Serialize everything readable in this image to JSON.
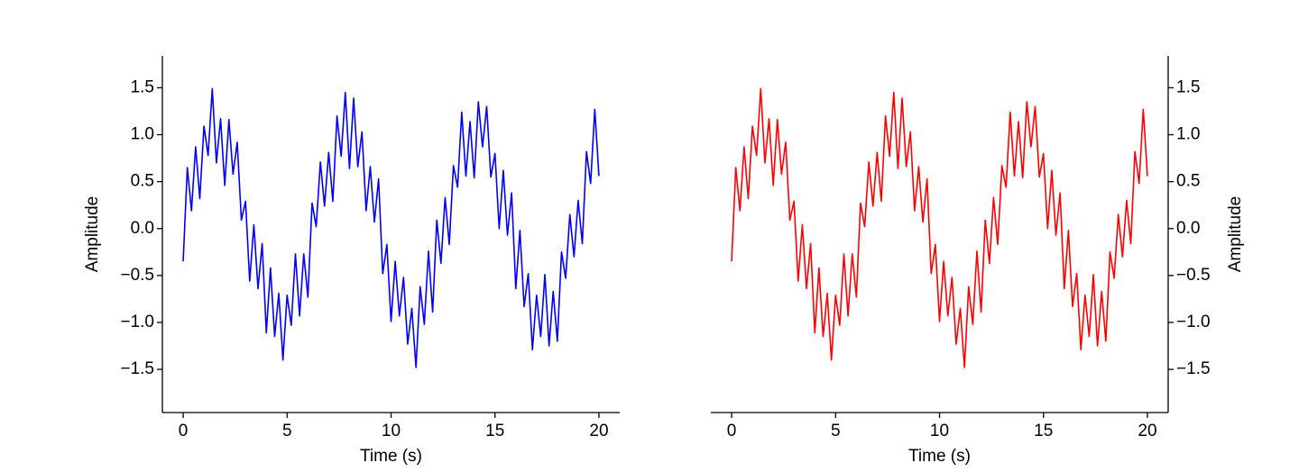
{
  "chart_data": [
    {
      "type": "line",
      "xlabel": "Time (s)",
      "ylabel": "Amplitude",
      "yaxis_side": "left",
      "color": "#0000ff",
      "xlim": [
        -1,
        21
      ],
      "ylim": [
        -1.96,
        1.84
      ],
      "xticks": [
        0,
        5,
        10,
        15,
        20
      ],
      "yticks": [
        {
          "value": -1.5,
          "label": "−1.5"
        },
        {
          "value": -1,
          "label": "−1.0"
        },
        {
          "value": -0.5,
          "label": "−0.5"
        },
        {
          "value": 0,
          "label": "0.0"
        },
        0.5,
        {
          "value": 1,
          "label": "1.0"
        },
        1.5
      ],
      "x": [
        0,
        0.2,
        0.4,
        0.6,
        0.8,
        1,
        1.2,
        1.4,
        1.6,
        1.8,
        2,
        2.2,
        2.4,
        2.6,
        2.8,
        3,
        3.2,
        3.4,
        3.6,
        3.8,
        4,
        4.2,
        4.4,
        4.6,
        4.8,
        5,
        5.2,
        5.4,
        5.6,
        5.8,
        6,
        6.2,
        6.4,
        6.6,
        6.8,
        7,
        7.2,
        7.4,
        7.6,
        7.8,
        8,
        8.2,
        8.4,
        8.6,
        8.8,
        9,
        9.2,
        9.4,
        9.6,
        9.8,
        10,
        10.2,
        10.4,
        10.6,
        10.8,
        11,
        11.2,
        11.4,
        11.6,
        11.8,
        12,
        12.2,
        12.4,
        12.6,
        12.8,
        13,
        13.2,
        13.4,
        13.6,
        13.8,
        14,
        14.2,
        14.4,
        14.6,
        14.8,
        15,
        15.2,
        15.4,
        15.6,
        15.8,
        16,
        16.2,
        16.4,
        16.6,
        16.8,
        17,
        17.2,
        17.4,
        17.6,
        17.8,
        18,
        18.2,
        18.4,
        18.6,
        18.8,
        19,
        19.2,
        19.4,
        19.6,
        19.8,
        20
      ],
      "values": [
        -0.35,
        0.65,
        0.19,
        0.87,
        0.32,
        1.09,
        0.78,
        1.49,
        0.7,
        1.17,
        0.46,
        1.16,
        0.58,
        0.92,
        0.09,
        0.29,
        -0.56,
        0.04,
        -0.64,
        -0.16,
        -1.11,
        -0.42,
        -1.15,
        -0.69,
        -1.4,
        -0.71,
        -1.03,
        -0.27,
        -0.93,
        -0.27,
        -0.73,
        0.27,
        0.02,
        0.71,
        0.24,
        0.81,
        0.29,
        1.2,
        0.77,
        1.45,
        0.64,
        1.39,
        0.66,
        1.03,
        0.19,
        0.66,
        0.07,
        0.53,
        -0.48,
        -0.17,
        -0.99,
        -0.35,
        -0.93,
        -0.52,
        -1.23,
        -0.85,
        -1.48,
        -0.62,
        -1.02,
        -0.24,
        -0.89,
        0.09,
        -0.37,
        0.33,
        -0.17,
        0.67,
        0.44,
        1.24,
        0.56,
        1.14,
        0.54,
        1.35,
        0.87,
        1.3,
        0.55,
        0.8,
        0,
        0.62,
        -0.07,
        0.38,
        -0.64,
        -0.02,
        -0.83,
        -0.48,
        -1.29,
        -0.71,
        -1.15,
        -0.49,
        -1.25,
        -0.67,
        -1.2,
        -0.25,
        -0.53,
        0.15,
        -0.3,
        0.3,
        -0.16,
        0.82,
        0.48,
        1.27,
        0.56
      ]
    },
    {
      "type": "line",
      "xlabel": "Time (s)",
      "ylabel": "Amplitude",
      "yaxis_side": "right",
      "color": "#ff0000",
      "xlim": [
        -1,
        21
      ],
      "ylim": [
        -1.96,
        1.84
      ],
      "xticks": [
        0,
        5,
        10,
        15,
        20
      ],
      "yticks": [
        {
          "value": -1.5,
          "label": "−1.5"
        },
        {
          "value": -1,
          "label": "−1.0"
        },
        {
          "value": -0.5,
          "label": "−0.5"
        },
        {
          "value": 0,
          "label": "0.0"
        },
        0.5,
        {
          "value": 1,
          "label": "1.0"
        },
        1.5
      ],
      "x": [
        0,
        0.2,
        0.4,
        0.6,
        0.8,
        1,
        1.2,
        1.4,
        1.6,
        1.8,
        2,
        2.2,
        2.4,
        2.6,
        2.8,
        3,
        3.2,
        3.4,
        3.6,
        3.8,
        4,
        4.2,
        4.4,
        4.6,
        4.8,
        5,
        5.2,
        5.4,
        5.6,
        5.8,
        6,
        6.2,
        6.4,
        6.6,
        6.8,
        7,
        7.2,
        7.4,
        7.6,
        7.8,
        8,
        8.2,
        8.4,
        8.6,
        8.8,
        9,
        9.2,
        9.4,
        9.6,
        9.8,
        10,
        10.2,
        10.4,
        10.6,
        10.8,
        11,
        11.2,
        11.4,
        11.6,
        11.8,
        12,
        12.2,
        12.4,
        12.6,
        12.8,
        13,
        13.2,
        13.4,
        13.6,
        13.8,
        14,
        14.2,
        14.4,
        14.6,
        14.8,
        15,
        15.2,
        15.4,
        15.6,
        15.8,
        16,
        16.2,
        16.4,
        16.6,
        16.8,
        17,
        17.2,
        17.4,
        17.6,
        17.8,
        18,
        18.2,
        18.4,
        18.6,
        18.8,
        19,
        19.2,
        19.4,
        19.6,
        19.8,
        20
      ],
      "values": [
        -0.35,
        0.65,
        0.19,
        0.87,
        0.32,
        1.09,
        0.78,
        1.49,
        0.7,
        1.17,
        0.46,
        1.16,
        0.58,
        0.92,
        0.09,
        0.29,
        -0.56,
        0.04,
        -0.64,
        -0.16,
        -1.11,
        -0.42,
        -1.15,
        -0.69,
        -1.4,
        -0.71,
        -1.03,
        -0.27,
        -0.93,
        -0.27,
        -0.73,
        0.27,
        0.02,
        0.71,
        0.24,
        0.81,
        0.29,
        1.2,
        0.77,
        1.45,
        0.64,
        1.39,
        0.66,
        1.03,
        0.19,
        0.66,
        0.07,
        0.53,
        -0.48,
        -0.17,
        -0.99,
        -0.35,
        -0.93,
        -0.52,
        -1.23,
        -0.85,
        -1.48,
        -0.62,
        -1.02,
        -0.24,
        -0.89,
        0.09,
        -0.37,
        0.33,
        -0.17,
        0.67,
        0.44,
        1.24,
        0.56,
        1.14,
        0.54,
        1.35,
        0.87,
        1.3,
        0.55,
        0.8,
        0,
        0.62,
        -0.07,
        0.38,
        -0.64,
        -0.02,
        -0.83,
        -0.48,
        -1.29,
        -0.71,
        -1.15,
        -0.49,
        -1.25,
        -0.67,
        -1.2,
        -0.25,
        -0.53,
        0.15,
        -0.3,
        0.3,
        -0.16,
        0.82,
        0.48,
        1.27,
        0.56
      ]
    }
  ]
}
